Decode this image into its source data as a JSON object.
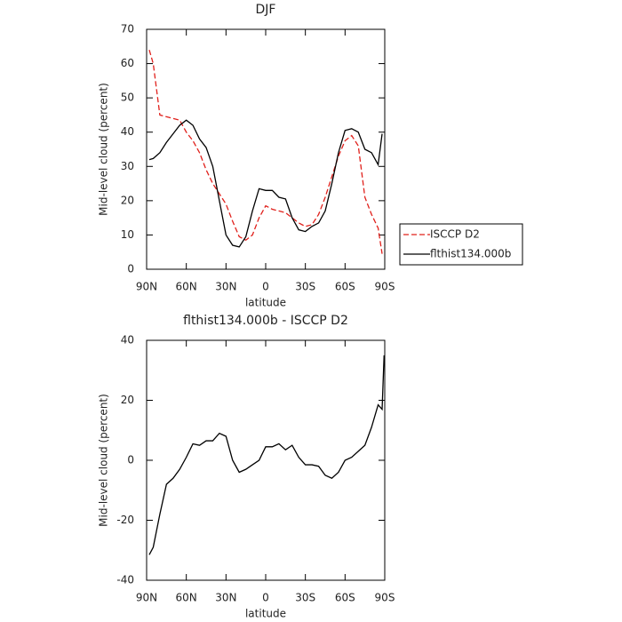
{
  "chart_data": [
    {
      "type": "line",
      "title": "DJF",
      "x_label": "latitude",
      "y_label": "Mid-level cloud (percent)",
      "x": [
        88,
        85,
        80,
        75,
        70,
        65,
        60,
        55,
        50,
        45,
        40,
        35,
        30,
        25,
        20,
        15,
        10,
        5,
        0,
        -5,
        -10,
        -15,
        -20,
        -25,
        -30,
        -35,
        -40,
        -45,
        -50,
        -55,
        -60,
        -65,
        -70,
        -75,
        -80,
        -85,
        -88
      ],
      "series": [
        {
          "name": "ISCCP D2",
          "color": "#e0201b",
          "dash": true,
          "values": [
            64,
            60,
            45,
            44.5,
            44,
            43.5,
            40,
            37.5,
            34,
            29,
            25,
            22,
            19,
            14,
            9.5,
            8.5,
            10,
            15,
            18.5,
            17.5,
            17,
            16.5,
            15,
            13.5,
            12.5,
            13,
            16,
            21,
            27,
            33,
            37.5,
            39,
            36,
            21,
            16,
            12,
            4.5
          ]
        },
        {
          "name": "flthist134.000b",
          "color": "#000000",
          "dash": false,
          "values": [
            32,
            32.3,
            34,
            37,
            39.5,
            42,
            43.5,
            42,
            38,
            35.5,
            30,
            20,
            10,
            7,
            6.5,
            9.5,
            17,
            23.5,
            23,
            23,
            21,
            20.5,
            15,
            11.5,
            11,
            12.5,
            13.5,
            17,
            25,
            34,
            40.5,
            41,
            40,
            35,
            34,
            30.5,
            39.5
          ]
        }
      ],
      "xlim": [
        90,
        -90
      ],
      "xticks": [
        {
          "value": 90,
          "label": "90N"
        },
        {
          "value": 60,
          "label": "60N"
        },
        {
          "value": 30,
          "label": "30N"
        },
        0,
        {
          "value": -30,
          "label": "30S"
        },
        {
          "value": -60,
          "label": "60S"
        },
        {
          "value": -90,
          "label": "90S"
        }
      ],
      "ylim": [
        0,
        70
      ],
      "yticks": [
        0,
        10,
        20,
        30,
        40,
        50,
        60,
        70
      ],
      "legend": "right-outside"
    },
    {
      "type": "line",
      "title": "flthist134.000b - ISCCP D2",
      "x_label": "latitude",
      "y_label": "Mid-level cloud (percent)",
      "x": [
        88,
        85,
        80,
        75,
        70,
        65,
        60,
        55,
        50,
        45,
        40,
        35,
        30,
        25,
        20,
        15,
        10,
        5,
        0,
        -5,
        -10,
        -15,
        -20,
        -25,
        -30,
        -35,
        -40,
        -45,
        -50,
        -55,
        -60,
        -65,
        -70,
        -75,
        -80,
        -85,
        -88,
        -89.5
      ],
      "series": [
        {
          "name": "flthist134.000b - ISCCP D2",
          "color": "#000000",
          "dash": false,
          "values": [
            -31.5,
            -29,
            -18,
            -8,
            -6,
            -3,
            1,
            5.5,
            5,
            6.5,
            6.5,
            9,
            8,
            0,
            -4,
            -3,
            -1.5,
            0,
            4.5,
            4.5,
            5.5,
            3.5,
            5,
            1,
            -1.5,
            -1.5,
            -2,
            -5,
            -6,
            -4,
            0,
            1,
            3,
            5,
            11,
            18.5,
            17,
            35
          ]
        }
      ],
      "xlim": [
        90,
        -90
      ],
      "xticks": [
        {
          "value": 90,
          "label": "90N"
        },
        {
          "value": 60,
          "label": "60N"
        },
        {
          "value": 30,
          "label": "30N"
        },
        0,
        {
          "value": -30,
          "label": "30S"
        },
        {
          "value": -60,
          "label": "60S"
        },
        {
          "value": -90,
          "label": "90S"
        }
      ],
      "ylim": [
        -40,
        40
      ],
      "yticks": [
        -40,
        -20,
        0,
        20,
        40
      ]
    }
  ]
}
